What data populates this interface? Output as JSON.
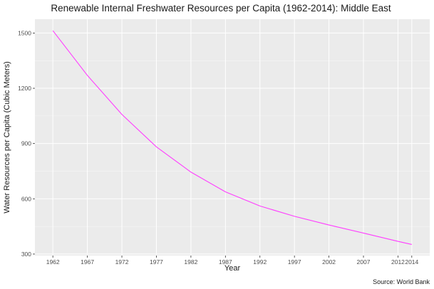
{
  "chart_data": {
    "type": "line",
    "title": "Renewable Internal Freshwater Resources per Capita (1962-2014): Middle East",
    "xlabel": "Year",
    "ylabel": "Water Resources per Capita (Cubic Meters)",
    "caption": "Source: World Bank",
    "x_ticks": [
      1962,
      1967,
      1972,
      1977,
      1982,
      1987,
      1992,
      1997,
      2002,
      2007,
      2012,
      2014
    ],
    "y_ticks": [
      300,
      600,
      900,
      1200,
      1500
    ],
    "xlim": [
      1959.4,
      2016.6
    ],
    "ylim": [
      292,
      1575
    ],
    "grid": true,
    "series": [
      {
        "name": "Middle East",
        "color": "#FF3DFF",
        "x": [
          1962,
          1967,
          1972,
          1977,
          1982,
          1987,
          1992,
          1997,
          2002,
          2007,
          2012,
          2014
        ],
        "y": [
          1513,
          1270,
          1058,
          882,
          745,
          638,
          561,
          505,
          458,
          414,
          369,
          352
        ]
      }
    ]
  },
  "colors": {
    "panel_background": "#EBEBEB",
    "grid_major": "#FFFFFF",
    "line": "#FF3DFF"
  }
}
